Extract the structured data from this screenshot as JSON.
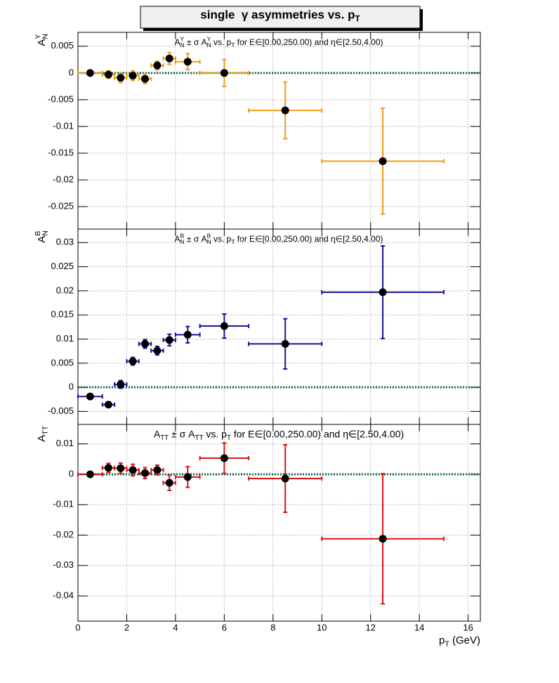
{
  "title": [
    {
      "text": "single  γ asymmetries vs. p"
    },
    {
      "text": "T",
      "pos": "sub"
    }
  ],
  "chart_data": [
    {
      "type": "scatter",
      "title": [
        {
          "text": "A"
        },
        {
          "text": "N",
          "pos": "sub"
        },
        {
          "text": "Y",
          "pos": "sup"
        },
        {
          "text": " ± σ A"
        },
        {
          "text": "N",
          "pos": "sub"
        },
        {
          "text": "Y",
          "pos": "sup"
        },
        {
          "text": " vs. p"
        },
        {
          "text": "T",
          "pos": "sub"
        },
        {
          "text": " for E∈[0.00,250.00) and η∈[2.50,4.00)"
        }
      ],
      "y_label": [
        {
          "text": "A"
        },
        {
          "text": "N",
          "pos": "sub"
        },
        {
          "text": "Y",
          "pos": "sup"
        }
      ],
      "x": [
        0.5,
        1.25,
        1.75,
        2.25,
        2.75,
        3.25,
        3.75,
        4.5,
        6,
        8.5,
        12.5
      ],
      "x_errors": [
        0.5,
        0.25,
        0.25,
        0.25,
        0.25,
        0.25,
        0.25,
        0.5,
        1,
        1.5,
        2.5
      ],
      "values": [
        0,
        -0.0003,
        -0.0009,
        -0.0005,
        -0.0011,
        0.0014,
        0.0027,
        0.0021,
        0,
        -0.007,
        -0.0165
      ],
      "errors": [
        0.0003,
        0.0007,
        0.0009,
        0.0009,
        0.0009,
        0.0008,
        0.0011,
        0.0015,
        0.0025,
        0.0053,
        0.0099
      ],
      "color": "#f29b13",
      "ref_line": 0,
      "ref_color": "#1e6b5a",
      "xlim": [
        0,
        16.5
      ],
      "ylim": [
        -0.0292,
        0.0076
      ],
      "yticks": [
        0.005,
        0,
        -0.005,
        -0.01,
        -0.015,
        -0.02,
        -0.025
      ],
      "grid": true
    },
    {
      "type": "scatter",
      "title": [
        {
          "text": "A"
        },
        {
          "text": "N",
          "pos": "sub"
        },
        {
          "text": "B",
          "pos": "sup"
        },
        {
          "text": " ± σ A"
        },
        {
          "text": "N",
          "pos": "sub"
        },
        {
          "text": "B",
          "pos": "sup"
        },
        {
          "text": " vs. p"
        },
        {
          "text": "T",
          "pos": "sub"
        },
        {
          "text": " for E∈[0.00,250.00) and η∈[2.50,4.00)"
        }
      ],
      "y_label": [
        {
          "text": "A"
        },
        {
          "text": "N",
          "pos": "sub"
        },
        {
          "text": "B",
          "pos": "sup"
        }
      ],
      "x": [
        0.5,
        1.25,
        1.75,
        2.25,
        2.75,
        3.25,
        3.75,
        4.5,
        6,
        8.5,
        12.5
      ],
      "x_errors": [
        0.5,
        0.25,
        0.25,
        0.25,
        0.25,
        0.25,
        0.25,
        0.5,
        1,
        1.5,
        2.5
      ],
      "values": [
        -0.0019,
        -0.0036,
        0.0006,
        0.0054,
        0.009,
        0.0076,
        0.0098,
        0.0109,
        0.0127,
        0.009,
        0.0197
      ],
      "errors": [
        0.0003,
        0.0005,
        0.0008,
        0.0008,
        0.0009,
        0.0009,
        0.0012,
        0.0017,
        0.0025,
        0.0052,
        0.0096
      ],
      "color": "#1313a0",
      "ref_line": 0,
      "ref_color": "#1e6b5a",
      "xlim": [
        0,
        16.5
      ],
      "ylim": [
        -0.0077,
        0.0328
      ],
      "yticks": [
        0.03,
        0.025,
        0.02,
        0.015,
        0.01,
        0.005,
        0,
        -0.005
      ],
      "grid": true
    },
    {
      "type": "scatter",
      "title": [
        {
          "text": "A"
        },
        {
          "text": "TT",
          "pos": "sub"
        },
        {
          "text": " ± σ A"
        },
        {
          "text": "TT",
          "pos": "sub"
        },
        {
          "text": " vs. p"
        },
        {
          "text": "T",
          "pos": "sub"
        },
        {
          "text": " for E∈[0.00,250.00) and η∈[2.50,4.00)"
        }
      ],
      "y_label": [
        {
          "text": "A"
        },
        {
          "text": "TT",
          "pos": "sub"
        }
      ],
      "x_label": [
        {
          "text": "p"
        },
        {
          "text": "T",
          "pos": "sub"
        },
        {
          "text": " (GeV)"
        }
      ],
      "x": [
        0.5,
        1.25,
        1.75,
        2.25,
        2.75,
        3.25,
        3.75,
        4.5,
        6,
        8.5,
        12.5
      ],
      "x_errors": [
        0.5,
        0.25,
        0.25,
        0.25,
        0.25,
        0.25,
        0.25,
        0.5,
        1,
        1.5,
        2.5
      ],
      "values": [
        0,
        0.0021,
        0.002,
        0.0014,
        0.0004,
        0.0014,
        -0.0028,
        -0.0009,
        0.0053,
        -0.0014,
        -0.0212
      ],
      "errors": [
        0.0003,
        0.0015,
        0.0017,
        0.0019,
        0.0018,
        0.0016,
        0.0025,
        0.0034,
        0.005,
        0.0111,
        0.0214
      ],
      "color": "#dd1111",
      "ref_line": 0,
      "ref_color": "#1e6b5a",
      "xlim": [
        0,
        16.5
      ],
      "ylim": [
        -0.0483,
        0.0164
      ],
      "yticks": [
        0.01,
        0,
        -0.01,
        -0.02,
        -0.03,
        -0.04
      ],
      "xticks": [
        0,
        2,
        4,
        6,
        8,
        10,
        12,
        14,
        16
      ],
      "grid": true
    }
  ]
}
